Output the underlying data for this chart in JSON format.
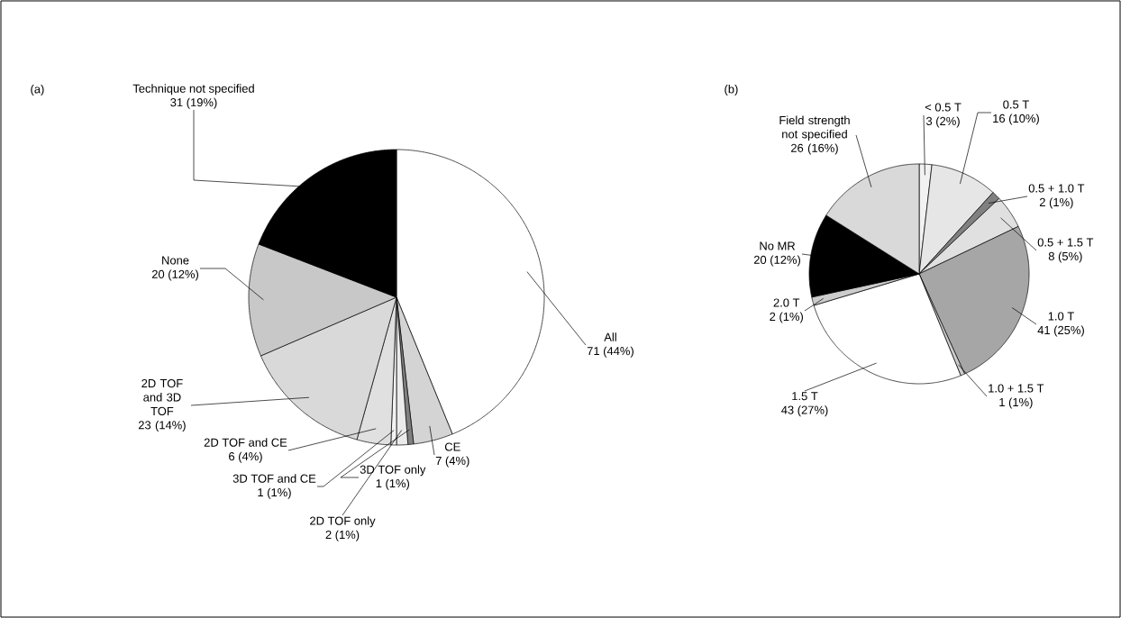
{
  "chart_data": [
    {
      "type": "pie",
      "title": "(a)",
      "categories": [
        "All",
        "CE",
        "3D TOF only",
        "2D TOF only",
        "3D TOF and CE",
        "2D TOF and CE",
        "2D TOF and 3D TOF",
        "None",
        "Technique not specified"
      ],
      "values": [
        71,
        7,
        1,
        2,
        1,
        6,
        23,
        20,
        31
      ],
      "colors": [
        "#ffffff",
        "#d4d4d4",
        "#808080",
        "#ebebeb",
        "#f2f2f2",
        "#e0e0e0",
        "#d9d9d9",
        "#c8c8c8",
        "#000000"
      ],
      "value_labels": [
        "71 (44%)",
        "7 (4%)",
        "1 (1%)",
        "2 (1%)",
        "1 (1%)",
        "6 (4%)",
        "23 (14%)",
        "20 (12%)",
        "31 (19%)"
      ]
    },
    {
      "type": "pie",
      "title": "(b)",
      "categories": [
        "< 0.5 T",
        "0.5 T",
        "0.5 + 1.0 T",
        "0.5 + 1.5 T",
        "1.0 T",
        "1.0 + 1.5 T",
        "1.5 T",
        "2.0 T",
        "No MR",
        "Field strength not specified"
      ],
      "values": [
        3,
        16,
        2,
        8,
        41,
        1,
        43,
        2,
        20,
        26
      ],
      "colors": [
        "#f2f2f2",
        "#e6e6e6",
        "#808080",
        "#e0e0e0",
        "#a6a6a6",
        "#cccccc",
        "#ffffff",
        "#cccccc",
        "#000000",
        "#d9d9d9"
      ],
      "value_labels": [
        "3 (2%)",
        "16 (10%)",
        "2 (1%)",
        "8 (5%)",
        "41 (25%)",
        "1 (1%)",
        "43 (27%)",
        "2 (1%)",
        "20 (12%)",
        "26 (16%)"
      ]
    }
  ]
}
